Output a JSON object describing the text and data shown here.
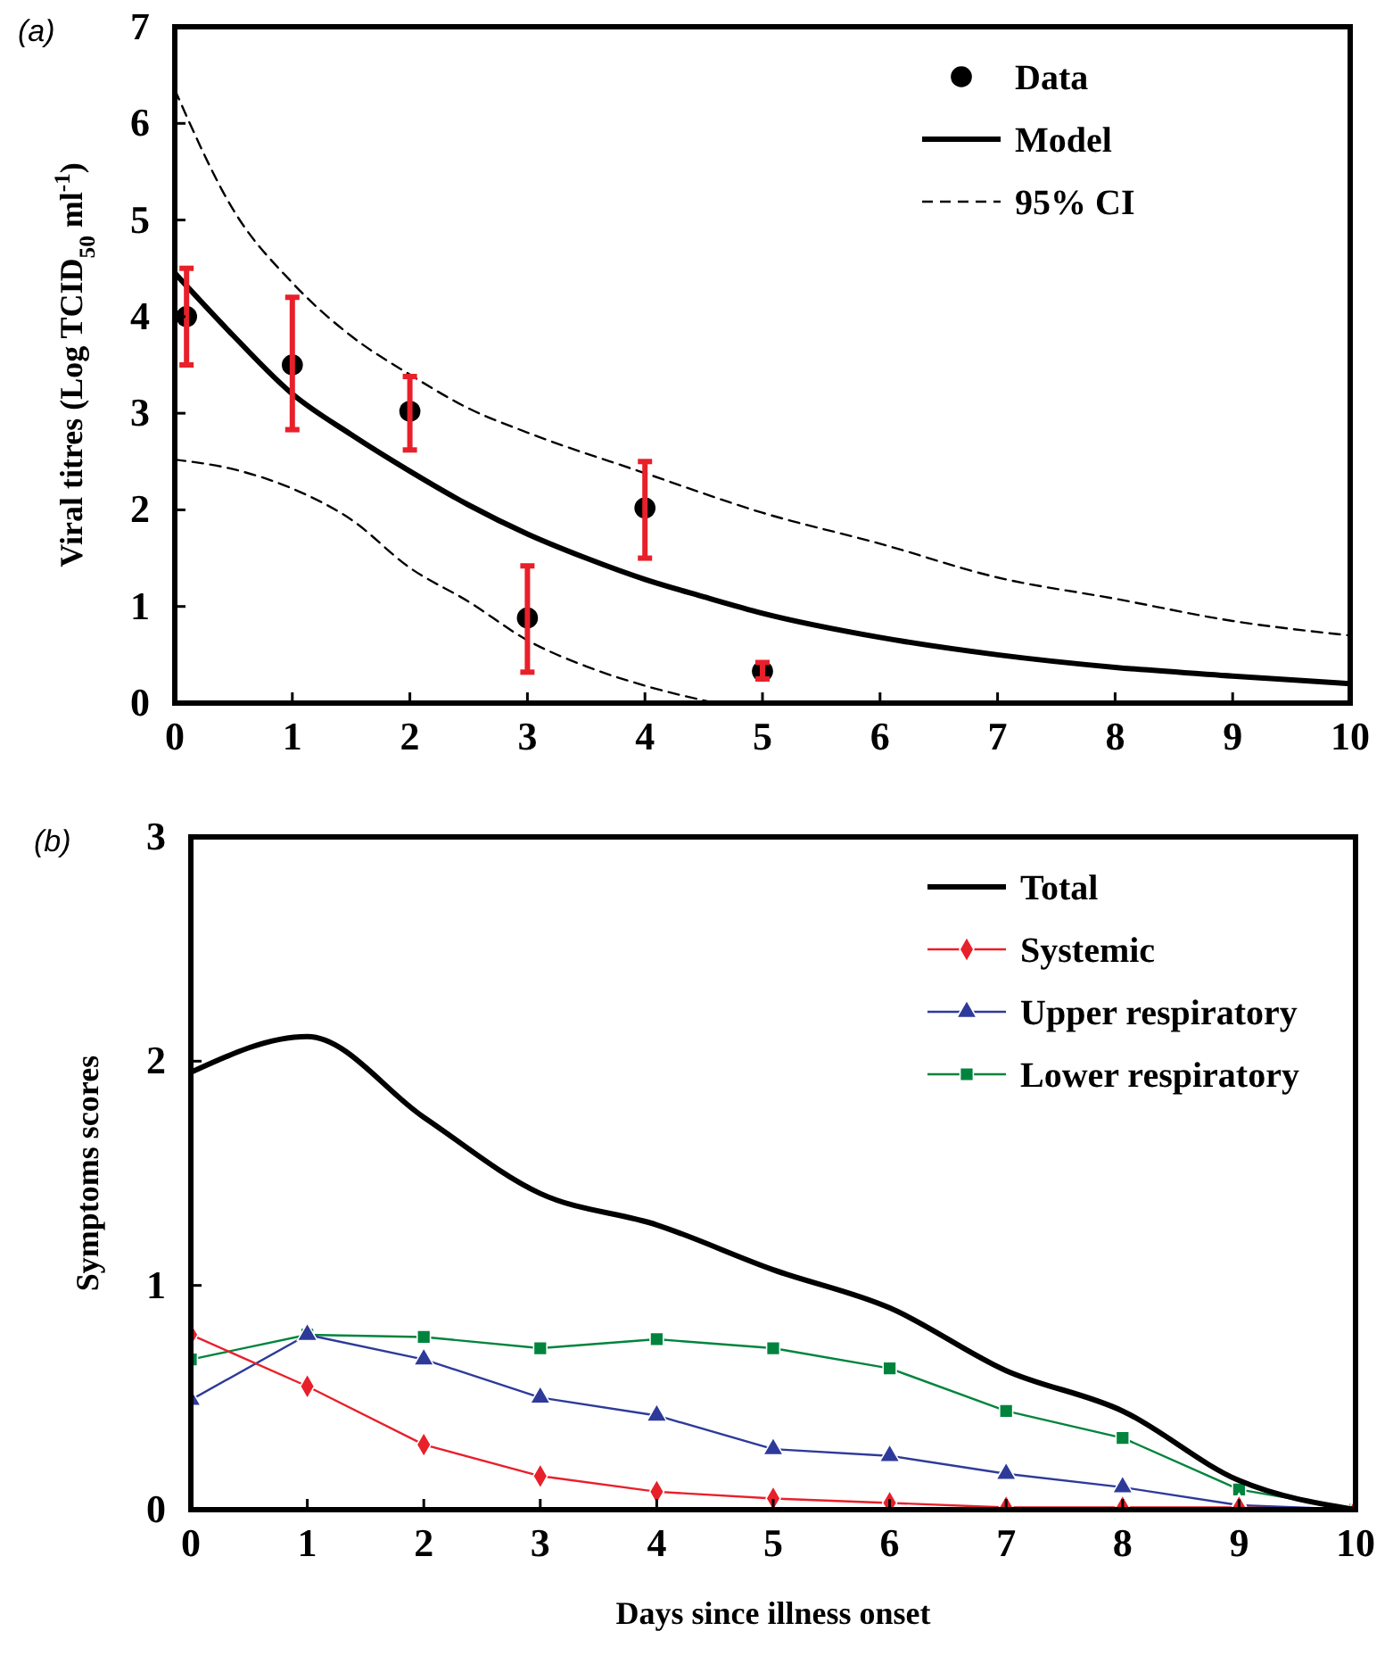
{
  "chart_data": [
    {
      "type": "line",
      "title": "(a)",
      "ylabel": "Viral titres (Log TCID$_{50}$ ml$^{-1}$)",
      "xlim": [
        0,
        10
      ],
      "xticks": [
        0,
        1,
        2,
        3,
        4,
        5,
        6,
        7,
        8,
        9,
        10
      ],
      "ylim": [
        0,
        7
      ],
      "yticks": [
        0,
        1,
        2,
        3,
        4,
        5,
        6,
        7
      ],
      "grid": false,
      "legend": "top right",
      "series": [
        {
          "name": "Data",
          "type": "scatter",
          "color": "#000000",
          "marker": "circle",
          "x": [
            0.1,
            1,
            2,
            3,
            4,
            5
          ],
          "values": [
            4.0,
            3.5,
            3.02,
            0.88,
            2.02,
            0.33
          ],
          "errors": [
            [
              3.5,
              4.5
            ],
            [
              2.83,
              4.2
            ],
            [
              2.62,
              3.38
            ],
            [
              0.32,
              1.42
            ],
            [
              1.5,
              2.5
            ],
            [
              0.25,
              0.42
            ]
          ]
        },
        {
          "name": "Model",
          "color": "#000000",
          "line_style": "solid",
          "marker": "none",
          "x": [
            0,
            0.5,
            1,
            1.5,
            2,
            2.5,
            3,
            3.5,
            4,
            4.5,
            5,
            6,
            7,
            8,
            9,
            10
          ],
          "values": [
            4.45,
            3.8,
            3.2,
            2.78,
            2.4,
            2.05,
            1.75,
            1.5,
            1.28,
            1.1,
            0.93,
            0.68,
            0.5,
            0.37,
            0.28,
            0.2
          ]
        },
        {
          "name": "95% CI",
          "color": "#000000",
          "line_style": "dashed",
          "marker": "none",
          "x": [
            0,
            0.5,
            1,
            1.5,
            2,
            2.5,
            3,
            4,
            5,
            6,
            7,
            8,
            9,
            10
          ],
          "values": [
            6.35,
            5.1,
            4.35,
            3.8,
            3.4,
            3.05,
            2.8,
            2.38,
            1.97,
            1.65,
            1.3,
            1.08,
            0.85,
            0.7
          ]
        },
        {
          "color": "#000000",
          "line_style": "dashed",
          "marker": "none",
          "x": [
            0,
            0.5,
            1,
            1.5,
            2,
            2.5,
            3,
            3.5,
            4,
            4.6
          ],
          "values": [
            2.52,
            2.42,
            2.22,
            1.9,
            1.4,
            1.05,
            0.65,
            0.38,
            0.18,
            0.0
          ]
        }
      ]
    },
    {
      "type": "line",
      "title": "(b)",
      "xlabel": "Days since illness onset",
      "ylabel": "Symptoms scores",
      "xlim": [
        0,
        10
      ],
      "xticks": [
        0,
        1,
        2,
        3,
        4,
        5,
        6,
        7,
        8,
        9,
        10
      ],
      "ylim": [
        0,
        3
      ],
      "yticks": [
        0,
        1,
        2,
        3
      ],
      "grid": false,
      "legend": "top right",
      "series": [
        {
          "name": "Total",
          "color": "#000000",
          "line_style": "solid",
          "marker": "none",
          "x": [
            0,
            1,
            2,
            3,
            4,
            5,
            6,
            7,
            8,
            9,
            10
          ],
          "values": [
            1.95,
            2.11,
            1.75,
            1.41,
            1.27,
            1.07,
            0.9,
            0.62,
            0.44,
            0.13,
            0
          ]
        },
        {
          "name": "Systemic",
          "color": "#e8202a",
          "line_style": "solid",
          "marker": "diamond",
          "x": [
            0,
            1,
            2,
            3,
            4,
            5,
            6,
            7,
            8,
            9,
            10
          ],
          "values": [
            0.78,
            0.55,
            0.29,
            0.15,
            0.08,
            0.05,
            0.03,
            0.01,
            0.01,
            0.01,
            0
          ]
        },
        {
          "name": "Upper respiratory",
          "color": "#2e3a9a",
          "line_style": "solid",
          "marker": "triangle",
          "x": [
            0,
            1,
            2,
            3,
            4,
            5,
            6,
            7,
            8,
            9,
            10
          ],
          "values": [
            0.49,
            0.78,
            0.67,
            0.5,
            0.42,
            0.27,
            0.24,
            0.16,
            0.1,
            0.02,
            0
          ]
        },
        {
          "name": "Lower respiratory",
          "color": "#00843d",
          "line_style": "solid",
          "marker": "square",
          "x": [
            0,
            1,
            2,
            3,
            4,
            5,
            6,
            7,
            8,
            9,
            10
          ],
          "values": [
            0.67,
            0.78,
            0.77,
            0.72,
            0.76,
            0.72,
            0.63,
            0.44,
            0.32,
            0.09,
            0
          ]
        }
      ]
    }
  ]
}
